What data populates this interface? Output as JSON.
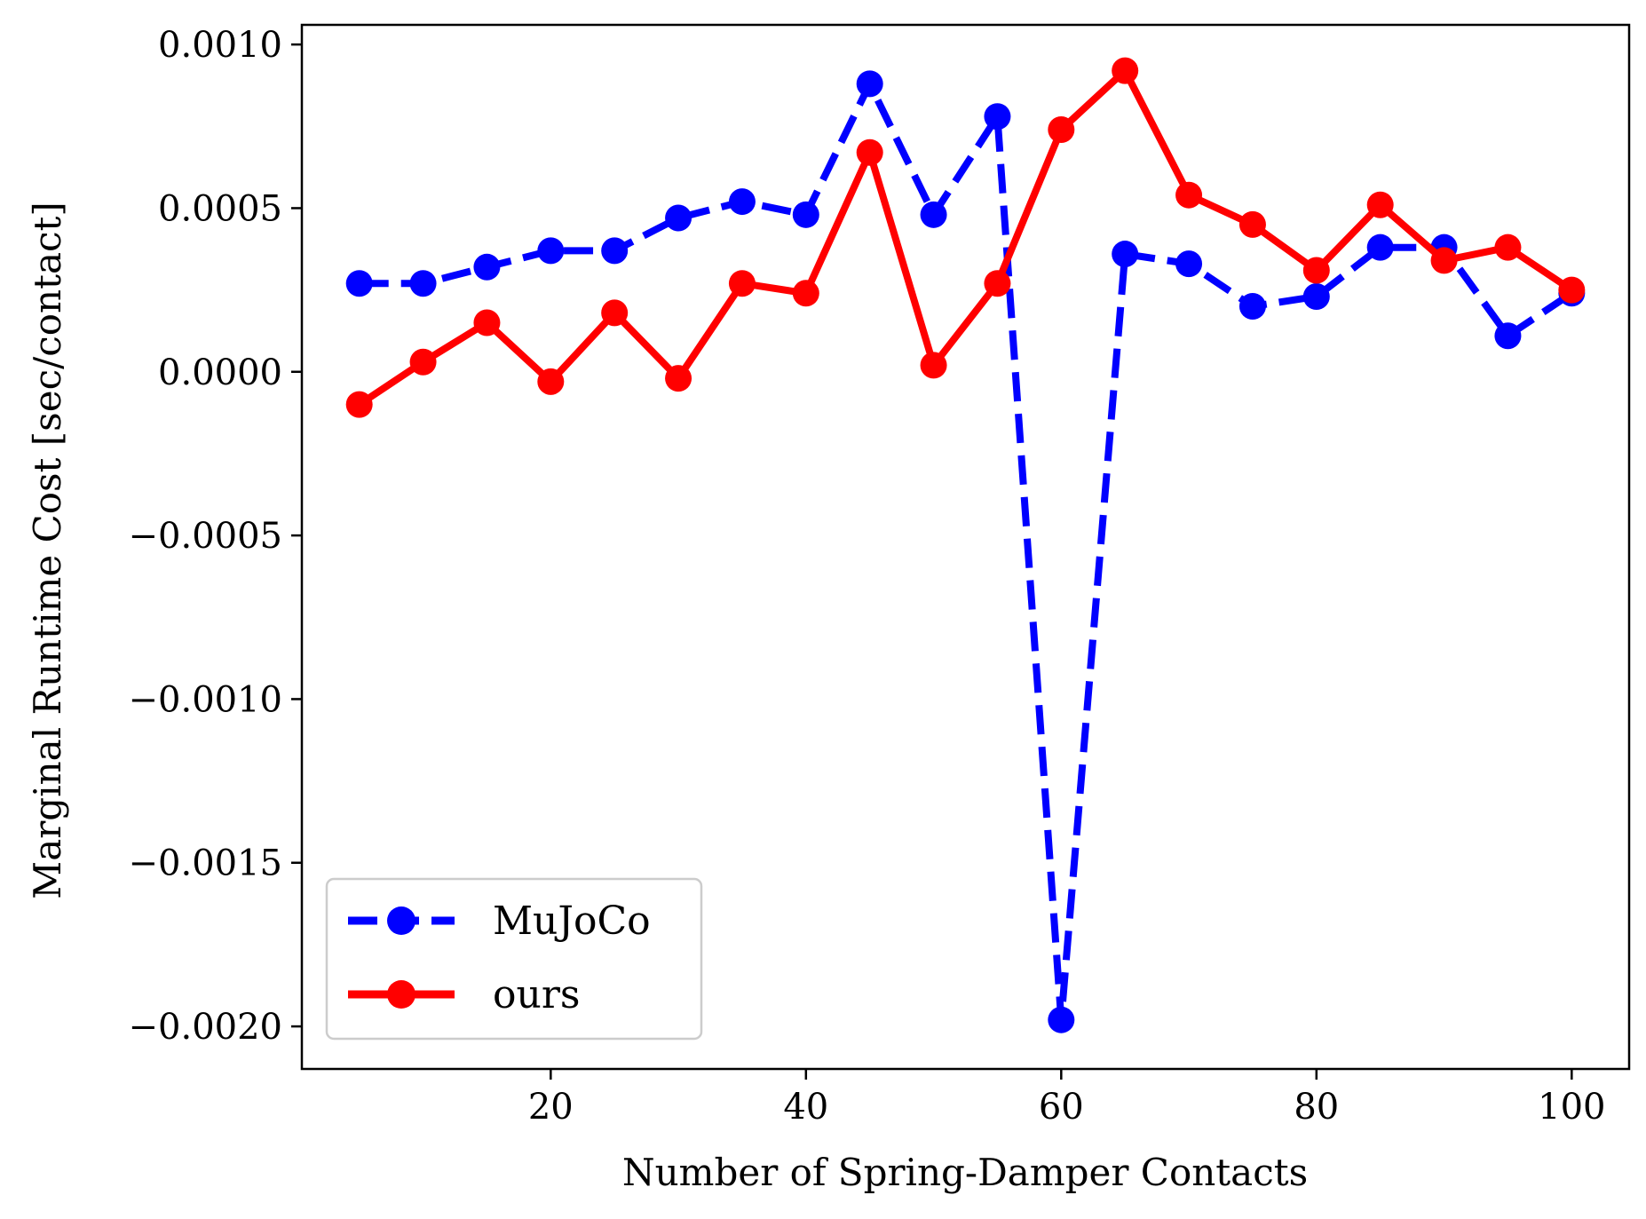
{
  "chart_data": {
    "type": "line",
    "title": "",
    "xlabel": "Number of Spring-Damper Contacts",
    "ylabel": "Marginal Runtime Cost [sec/contact]",
    "xlim": [
      0.5,
      104.5
    ],
    "ylim": [
      -0.00213,
      0.00106
    ],
    "xticks": [
      20,
      40,
      60,
      80,
      100
    ],
    "yticks": [
      0.001,
      0.0005,
      0.0,
      -0.0005,
      -0.001,
      -0.0015,
      -0.002
    ],
    "xtick_labels": [
      "20",
      "40",
      "60",
      "80",
      "100"
    ],
    "ytick_labels": [
      "0.0010",
      "0.0005",
      "0.0000",
      "−0.0005",
      "−0.0010",
      "−0.0015",
      "−0.0020"
    ],
    "grid": false,
    "legend_position": "lower-left",
    "x": [
      5,
      10,
      15,
      20,
      25,
      30,
      35,
      40,
      45,
      50,
      55,
      60,
      65,
      70,
      75,
      80,
      85,
      90,
      95,
      100
    ],
    "series": [
      {
        "name": "MuJoCo",
        "color": "#0000ff",
        "line_style": "dashed",
        "values": [
          0.00027,
          0.00027,
          0.00032,
          0.00037,
          0.00037,
          0.00047,
          0.00052,
          0.00048,
          0.00088,
          0.00048,
          0.00078,
          -0.00198,
          0.00036,
          0.00033,
          0.0002,
          0.00023,
          0.00038,
          0.00038,
          0.00011,
          0.00024
        ]
      },
      {
        "name": "ours",
        "color": "#ff0000",
        "line_style": "solid",
        "values": [
          -0.0001,
          3e-05,
          0.00015,
          -3e-05,
          0.00018,
          -2e-05,
          0.00027,
          0.00024,
          0.00067,
          2e-05,
          0.00027,
          0.00074,
          0.00092,
          0.00054,
          0.00045,
          0.00031,
          0.00051,
          0.00034,
          0.00038,
          0.00025
        ]
      }
    ]
  }
}
